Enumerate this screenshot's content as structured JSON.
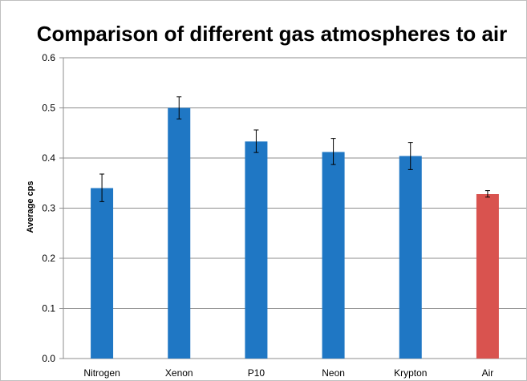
{
  "chart_data": {
    "type": "bar",
    "title": "Comparison of different gas atmospheres to air",
    "xlabel": "",
    "ylabel": "Average cps",
    "categories": [
      "Nitrogen",
      "Xenon",
      "P10",
      "Neon",
      "Krypton",
      "Air"
    ],
    "values": [
      0.34,
      0.5,
      0.433,
      0.412,
      0.404,
      0.328
    ],
    "error_low": [
      0.313,
      0.478,
      0.411,
      0.387,
      0.377,
      0.322
    ],
    "error_high": [
      0.368,
      0.522,
      0.456,
      0.439,
      0.431,
      0.335
    ],
    "bar_colors": [
      "#1f77c4",
      "#1f77c4",
      "#1f77c4",
      "#1f77c4",
      "#1f77c4",
      "#d9534f"
    ],
    "ylim": [
      0,
      0.6
    ],
    "yticks": [
      "0.0",
      "0.1",
      "0.2",
      "0.3",
      "0.4",
      "0.5",
      "0.6"
    ],
    "grid": true,
    "legend": "none"
  }
}
